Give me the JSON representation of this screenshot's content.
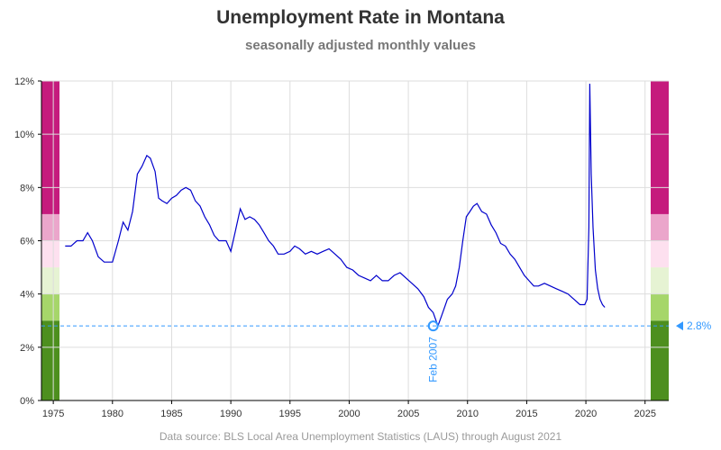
{
  "chart_data": {
    "type": "line",
    "title": "Unemployment Rate in Montana",
    "subtitle": "seasonally adjusted monthly values",
    "footer": "Data source: BLS Local Area Unemployment Statistics (LAUS) through August 2021",
    "xlabel": "",
    "ylabel": "",
    "xlim": [
      1974,
      2027
    ],
    "ylim": [
      0,
      12
    ],
    "x_ticks": [
      1975,
      1980,
      1985,
      1990,
      1995,
      2000,
      2005,
      2010,
      2015,
      2020,
      2025
    ],
    "y_ticks": [
      "0%",
      "2%",
      "4%",
      "6%",
      "8%",
      "10%",
      "12%"
    ],
    "grid": true,
    "line_color": "#0000cc",
    "color_bands": [
      {
        "from": 0,
        "to": 3,
        "color": "#4d8f1e"
      },
      {
        "from": 3,
        "to": 4,
        "color": "#a6d66a"
      },
      {
        "from": 4,
        "to": 5,
        "color": "#e6f3d3"
      },
      {
        "from": 5,
        "to": 6,
        "color": "#fde0ef"
      },
      {
        "from": 6,
        "to": 7,
        "color": "#eba6cb"
      },
      {
        "from": 7,
        "to": 12,
        "color": "#c51b7d"
      }
    ],
    "series": [
      {
        "x": [
          1976.0,
          1976.5,
          1977.0,
          1977.5,
          1977.9,
          1978.3,
          1978.8,
          1979.3,
          1980.0,
          1980.5,
          1980.9,
          1981.3,
          1981.7,
          1982.1,
          1982.5,
          1982.9,
          1983.2,
          1983.6,
          1983.9,
          1984.2,
          1984.6,
          1985.0,
          1985.4,
          1985.8,
          1986.2,
          1986.6,
          1987.0,
          1987.4,
          1987.8,
          1988.2,
          1988.6,
          1989.0,
          1989.6,
          1990.0,
          1990.4,
          1990.8,
          1991.2,
          1991.6,
          1992.0,
          1992.4,
          1992.8,
          1993.2,
          1993.6,
          1994.0,
          1994.5,
          1995.0,
          1995.4,
          1995.8,
          1996.3,
          1996.8,
          1997.3,
          1997.8,
          1998.3,
          1998.8,
          1999.3,
          1999.8,
          2000.3,
          2000.8,
          2001.3,
          2001.8,
          2002.3,
          2002.8,
          2003.3,
          2003.8,
          2004.3,
          2004.8,
          2005.3,
          2005.8,
          2006.3,
          2006.7,
          2007.1,
          2007.5,
          2007.9,
          2008.3,
          2008.7,
          2009.0,
          2009.3,
          2009.6,
          2009.9,
          2010.2,
          2010.5,
          2010.8,
          2011.2,
          2011.6,
          2012.0,
          2012.4,
          2012.8,
          2013.2,
          2013.6,
          2014.0,
          2014.4,
          2014.8,
          2015.2,
          2015.6,
          2016.0,
          2016.5,
          2017.0,
          2017.5,
          2018.0,
          2018.5,
          2019.0,
          2019.5,
          2019.9,
          2020.1,
          2020.25,
          2020.33,
          2020.45,
          2020.6,
          2020.8,
          2021.0,
          2021.2,
          2021.4,
          2021.6
        ],
        "y": [
          5.8,
          5.8,
          6.0,
          6.0,
          6.3,
          6.0,
          5.4,
          5.2,
          5.2,
          6.0,
          6.7,
          6.4,
          7.1,
          8.5,
          8.8,
          9.2,
          9.1,
          8.6,
          7.6,
          7.5,
          7.4,
          7.6,
          7.7,
          7.9,
          8.0,
          7.9,
          7.5,
          7.3,
          6.9,
          6.6,
          6.2,
          6.0,
          6.0,
          5.6,
          6.4,
          7.2,
          6.8,
          6.9,
          6.8,
          6.6,
          6.3,
          6.0,
          5.8,
          5.5,
          5.5,
          5.6,
          5.8,
          5.7,
          5.5,
          5.6,
          5.5,
          5.6,
          5.7,
          5.5,
          5.3,
          5.0,
          4.9,
          4.7,
          4.6,
          4.5,
          4.7,
          4.5,
          4.5,
          4.7,
          4.8,
          4.6,
          4.4,
          4.2,
          3.9,
          3.5,
          3.3,
          2.8,
          3.3,
          3.8,
          4.0,
          4.3,
          5.0,
          6.0,
          6.9,
          7.1,
          7.3,
          7.4,
          7.1,
          7.0,
          6.6,
          6.3,
          5.9,
          5.8,
          5.5,
          5.3,
          5.0,
          4.7,
          4.5,
          4.3,
          4.3,
          4.4,
          4.3,
          4.2,
          4.1,
          4.0,
          3.8,
          3.6,
          3.6,
          3.8,
          6.5,
          11.9,
          8.5,
          6.5,
          4.9,
          4.2,
          3.8,
          3.6,
          3.5
        ]
      }
    ],
    "reference_line": {
      "value": 2.8,
      "label": "2.8%"
    },
    "annotation": {
      "x": 2007.1,
      "y": 2.8,
      "label": "Feb 2007"
    }
  }
}
